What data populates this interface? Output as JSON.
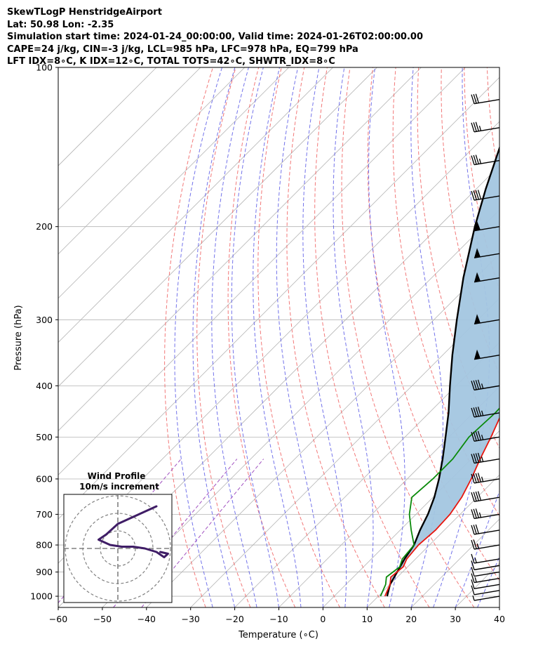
{
  "header": {
    "line1": "SkewTLogP HenstridgeAirport",
    "line2": "Lat: 50.98   Lon: -2.35",
    "line3": "Simulation start time: 2024-01-24_00:00:00, Valid time: 2024-01-26T02:00:00.00",
    "line4": "CAPE=24 j/kg, CIN=-3 j/kg, LCL=985 hPa, LFC=978 hPa, EQ=799 hPa",
    "line5": "LFT IDX=8∘C, K IDX=12∘C, TOTAL TOTS=42∘C, SHWTR_IDX=8∘C"
  },
  "colors": {
    "temperature": "#e8160e",
    "dewpoint": "#0a8a0a",
    "parcel": "#000000",
    "cape_fill": "#a3c6e0",
    "dry_adiabat": "#f06060",
    "moist_adiabat": "#5a5ae6",
    "mixing_ratio": "#a050c0",
    "isotherm": "#b4b4b4",
    "hodograph": "#3f1d66"
  },
  "chart_data": {
    "type": "line",
    "title": "SkewTLogP HenstridgeAirport",
    "xlabel": "Temperature (∘C)",
    "ylabel": "Pressure (hPa)",
    "xlim": [
      -60,
      40
    ],
    "ylim": [
      1050,
      100
    ],
    "y_scale": "log",
    "grid": true,
    "x_ticks": [
      -60,
      -50,
      -40,
      -30,
      -20,
      -10,
      0,
      10,
      20,
      30,
      40
    ],
    "y_ticks": [
      1000,
      900,
      800,
      700,
      600,
      500,
      400,
      300,
      200,
      100
    ],
    "series": [
      {
        "name": "Temperature",
        "points": [
          [
            11.5,
            1000
          ],
          [
            10,
            950
          ],
          [
            8.5,
            920
          ],
          [
            9,
            880
          ],
          [
            8,
            850
          ],
          [
            7.5,
            800
          ],
          [
            8,
            750
          ],
          [
            7.7,
            700
          ],
          [
            6.5,
            650
          ],
          [
            4.5,
            600
          ],
          [
            2,
            550
          ],
          [
            -0.5,
            500
          ],
          [
            -3.5,
            450
          ],
          [
            -6.8,
            400
          ],
          [
            -10.5,
            350
          ],
          [
            -13.2,
            300
          ],
          [
            -13.5,
            270
          ],
          [
            -14.2,
            250
          ],
          [
            -16.4,
            230
          ],
          [
            -17,
            210
          ],
          [
            -16,
            195
          ],
          [
            -11.5,
            175
          ],
          [
            -6.5,
            155
          ],
          [
            -1,
            140
          ],
          [
            2.5,
            125
          ],
          [
            4.5,
            115
          ],
          [
            6.5,
            100
          ]
        ]
      },
      {
        "name": "Dewpoint",
        "points": [
          [
            10.5,
            1000
          ],
          [
            9,
            950
          ],
          [
            7.5,
            920
          ],
          [
            8.2,
            880
          ],
          [
            7,
            850
          ],
          [
            6.5,
            800
          ],
          [
            2.5,
            750
          ],
          [
            -1.5,
            700
          ],
          [
            -4.8,
            650
          ],
          [
            -4.2,
            600
          ],
          [
            -4.2,
            550
          ],
          [
            -5.5,
            500
          ],
          [
            -5,
            450
          ],
          [
            -5.5,
            400
          ],
          [
            -8,
            350
          ],
          [
            -11.5,
            320
          ],
          [
            -14.5,
            300
          ],
          [
            -19.5,
            270
          ],
          [
            -21,
            255
          ],
          [
            -19.5,
            240
          ],
          [
            -18,
            225
          ],
          [
            -17,
            210
          ],
          [
            -16.5,
            195
          ],
          [
            -13.5,
            180
          ],
          [
            -12.5,
            160
          ],
          [
            -12.8,
            150
          ],
          [
            -16.5,
            140
          ],
          [
            -17.5,
            130
          ],
          [
            -14,
            115
          ],
          [
            -11.8,
            100
          ]
        ]
      },
      {
        "name": "Parcel",
        "points": [
          [
            12,
            1000
          ],
          [
            10,
            950
          ],
          [
            8.8,
            900
          ],
          [
            7.5,
            850
          ],
          [
            6.5,
            800
          ],
          [
            4.5,
            750
          ],
          [
            2.7,
            700
          ],
          [
            0.3,
            650
          ],
          [
            -2.8,
            600
          ],
          [
            -6.5,
            550
          ],
          [
            -10.8,
            500
          ],
          [
            -15.6,
            450
          ],
          [
            -21.4,
            400
          ],
          [
            -27.8,
            350
          ],
          [
            -34.8,
            300
          ],
          [
            -42.8,
            250
          ],
          [
            -51.8,
            200
          ],
          [
            -57.8,
            170
          ],
          [
            -64.5,
            140
          ],
          [
            -71.5,
            120
          ],
          [
            -76,
            100
          ]
        ]
      }
    ],
    "wind_barbs": [
      {
        "p": 1000,
        "flags": 0,
        "full": 0,
        "half": 1
      },
      {
        "p": 975,
        "flags": 0,
        "full": 1,
        "half": 0
      },
      {
        "p": 950,
        "flags": 0,
        "full": 1,
        "half": 0
      },
      {
        "p": 925,
        "flags": 0,
        "full": 1,
        "half": 1
      },
      {
        "p": 900,
        "flags": 0,
        "full": 1,
        "half": 0
      },
      {
        "p": 875,
        "flags": 0,
        "full": 1,
        "half": 0
      },
      {
        "p": 850,
        "flags": 0,
        "full": 1,
        "half": 1
      },
      {
        "p": 800,
        "flags": 0,
        "full": 2,
        "half": 1
      },
      {
        "p": 750,
        "flags": 0,
        "full": 3,
        "half": 0
      },
      {
        "p": 700,
        "flags": 0,
        "full": 3,
        "half": 1
      },
      {
        "p": 650,
        "flags": 0,
        "full": 4,
        "half": 0
      },
      {
        "p": 600,
        "flags": 0,
        "full": 4,
        "half": 1
      },
      {
        "p": 550,
        "flags": 0,
        "full": 4,
        "half": 1
      },
      {
        "p": 500,
        "flags": 0,
        "full": 4,
        "half": 1
      },
      {
        "p": 450,
        "flags": 0,
        "full": 4,
        "half": 1
      },
      {
        "p": 400,
        "flags": 0,
        "full": 4,
        "half": 1
      },
      {
        "p": 350,
        "flags": 1,
        "full": 0,
        "half": 0
      },
      {
        "p": 300,
        "flags": 1,
        "full": 0,
        "half": 0
      },
      {
        "p": 250,
        "flags": 1,
        "full": 0,
        "half": 0
      },
      {
        "p": 225,
        "flags": 1,
        "full": 0,
        "half": 0
      },
      {
        "p": 200,
        "flags": 1,
        "full": 0,
        "half": 0
      },
      {
        "p": 175,
        "flags": 0,
        "full": 4,
        "half": 0
      },
      {
        "p": 150,
        "flags": 0,
        "full": 3,
        "half": 1
      },
      {
        "p": 130,
        "flags": 0,
        "full": 3,
        "half": 1
      },
      {
        "p": 115,
        "flags": 0,
        "full": 3,
        "half": 0
      }
    ],
    "hodograph": {
      "title": "Wind Profile",
      "subtitle": "10m/s increment",
      "rings_ms": [
        10,
        20,
        30
      ],
      "uv_ms": [
        [
          11,
          -2
        ],
        [
          13,
          -3
        ],
        [
          12,
          -5
        ],
        [
          10,
          -2
        ],
        [
          7,
          0
        ],
        [
          4,
          1
        ],
        [
          1,
          1
        ],
        [
          -2,
          2
        ],
        [
          -5,
          5
        ],
        [
          -3,
          8
        ],
        [
          0,
          14
        ],
        [
          4,
          18
        ],
        [
          10,
          24
        ]
      ]
    }
  }
}
